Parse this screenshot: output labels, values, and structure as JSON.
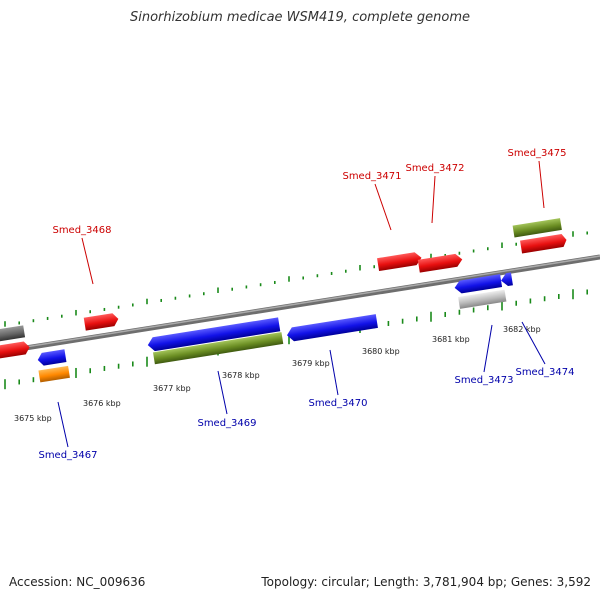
{
  "title": "Sinorhizobium medicae WSM419, complete genome",
  "footer": {
    "accession": "Accession: NC_009636",
    "summary": "Topology: circular; Length: 3,781,904 bp; Genes: 3,592"
  },
  "colors": {
    "forward_label": "#cc0000",
    "reverse_label": "#0000aa",
    "backbone": "#888888",
    "tick": "#1a8a1a",
    "cds_forward": "#ee1111",
    "cds_reverse": "#1a1aee",
    "rna": "#6b8e23",
    "other": "#ff8800",
    "pseudo": "#bbbbbb",
    "dark": "#666666"
  },
  "ticks": [
    {
      "id": "3675",
      "label": "3675 kbp"
    },
    {
      "id": "3676",
      "label": "3676 kbp"
    },
    {
      "id": "3677",
      "label": "3677 kbp"
    },
    {
      "id": "3678",
      "label": "3678 kbp"
    },
    {
      "id": "3679",
      "label": "3679 kbp"
    },
    {
      "id": "3680",
      "label": "3680 kbp"
    },
    {
      "id": "3681",
      "label": "3681 kbp"
    },
    {
      "id": "3682",
      "label": "3682 kbp"
    }
  ],
  "genes": [
    {
      "id": "Smed_3467",
      "strand": "reverse"
    },
    {
      "id": "Smed_3468",
      "strand": "forward"
    },
    {
      "id": "Smed_3469",
      "strand": "reverse"
    },
    {
      "id": "Smed_3470",
      "strand": "reverse"
    },
    {
      "id": "Smed_3471",
      "strand": "forward"
    },
    {
      "id": "Smed_3472",
      "strand": "forward"
    },
    {
      "id": "Smed_3473",
      "strand": "reverse"
    },
    {
      "id": "Smed_3474",
      "strand": "reverse"
    },
    {
      "id": "Smed_3475",
      "strand": "forward"
    }
  ]
}
